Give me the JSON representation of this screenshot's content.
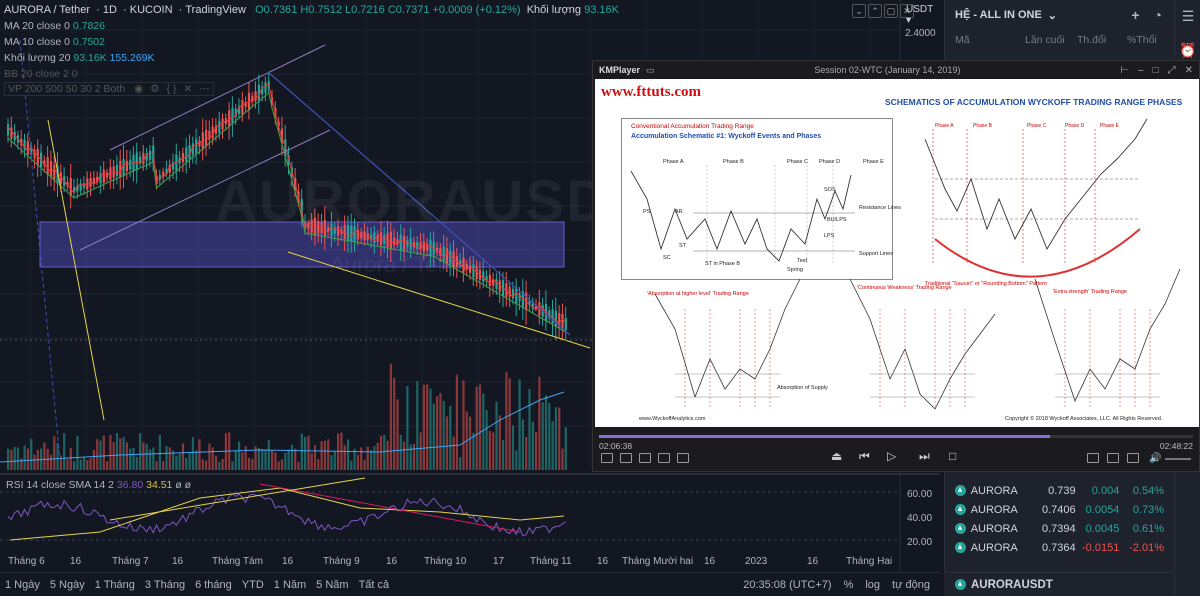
{
  "chart": {
    "symbol": "AURORA / Tether",
    "interval": "1D",
    "exchange": "KUCOIN",
    "source": "TradingView",
    "ohlc": {
      "o": "O0.7361",
      "h": "H0.7512",
      "l": "L0.7216",
      "c": "C0.7371",
      "chg": "+0.0009 (+0.12%)"
    },
    "volume_label": "Khối lượng",
    "volume_value": "93.16K",
    "currency": "USDT",
    "price_top": "2.4000",
    "indicators": [
      {
        "name": "MA 20 close 0",
        "value": "0.7826",
        "color": "#26a69a"
      },
      {
        "name": "MA 10 close 0",
        "value": "0.7502",
        "color": "#26a69a"
      },
      {
        "name": "Khối lượng 20",
        "value": "93.16K",
        "value2": "155.269K",
        "color": "#42a5f5"
      },
      {
        "name": "BB 20 close 2 0",
        "value": "",
        "color": "#787b86"
      },
      {
        "name": "VP 200 500 50 30 2 Both",
        "value": "",
        "color": "#787b86"
      }
    ],
    "rsi": {
      "label": "RSI 14 close SMA 14 2",
      "v1": "36.80",
      "v2": "34.51",
      "extra": "ø ø"
    },
    "rsi_scale": [
      "60.00",
      "40.00",
      "20.00"
    ],
    "x_ticks": [
      "Tháng 6",
      "16",
      "Tháng 7",
      "16",
      "Tháng Tám",
      "16",
      "Tháng 9",
      "16",
      "Tháng 10",
      "17",
      "Tháng 11",
      "16",
      "Tháng Mười hai",
      "16",
      "2023",
      "16",
      "Tháng Hai"
    ]
  },
  "toolbar": {
    "timeframes": [
      "1 Ngày",
      "5 Ngày",
      "1 Tháng",
      "3 Tháng",
      "6 tháng",
      "YTD",
      "1 Năm",
      "5 Năm",
      "Tất cả"
    ],
    "clock": "20:35:08 (UTC+7)",
    "pct": "%",
    "log": "log",
    "auto": "tự động"
  },
  "watchlist": {
    "title": "HỆ - ALL IN ONE",
    "columns": [
      "Mã",
      "Lần cuối",
      "Th.đổi",
      "%Thổi"
    ],
    "rows": [
      {
        "sym": "AURORA",
        "last": "0.739",
        "chg": "0.004",
        "pct": "0.54%",
        "dir": "up"
      },
      {
        "sym": "AURORA",
        "last": "0.7406",
        "chg": "0.0054",
        "pct": "0.73%",
        "dir": "up"
      },
      {
        "sym": "AURORA",
        "last": "0.7394",
        "chg": "0.0045",
        "pct": "0.61%",
        "dir": "up"
      },
      {
        "sym": "AURORA",
        "last": "0.7364",
        "chg": "-0.0151",
        "pct": "-2.01%",
        "dir": "dn"
      }
    ],
    "bottom_symbol": "AURORAUSDT"
  },
  "kmplayer": {
    "brand": "KMPlayer",
    "title": "Session 02-WTC (January 14, 2019)",
    "site": "www.fttuts.com",
    "slide_title": "SCHEMATICS OF ACCUMULATION WYCKOFF TRADING RANGE PHASES",
    "box_title": "Conventional Accumulation Trading Range",
    "box_subtitle": "Accumulation Schematic #1: Wyckoff Events and Phases",
    "phases": [
      "Phase A",
      "Phase B",
      "Phase C",
      "Phase D",
      "Phase E"
    ],
    "events": [
      "PS",
      "AR",
      "ST",
      "SC",
      "SOS",
      "BU/LPS",
      "LPS",
      "Test",
      "Spring",
      "ST in Phase B",
      "Resistance Lines",
      "Support Lines"
    ],
    "sub_titles": [
      "'Absorption at higher level' Trading Range",
      "'Continuous Weakness' Trading Range",
      "'Extra strength' Trading Range"
    ],
    "absorption_note": "Absorption of Supply",
    "footer_left": "www.WyckoffAnalytics.com",
    "footer_right": "Copyright © 2018 Wyckoff Associates, LLC. All Rights Reserved.",
    "rounding_note": "Traditional \"Saucer\" or \"Rounding Bottom\" Pattern",
    "time_current": "02:06:38",
    "time_total": "02:48:22",
    "progress": 0.76
  }
}
